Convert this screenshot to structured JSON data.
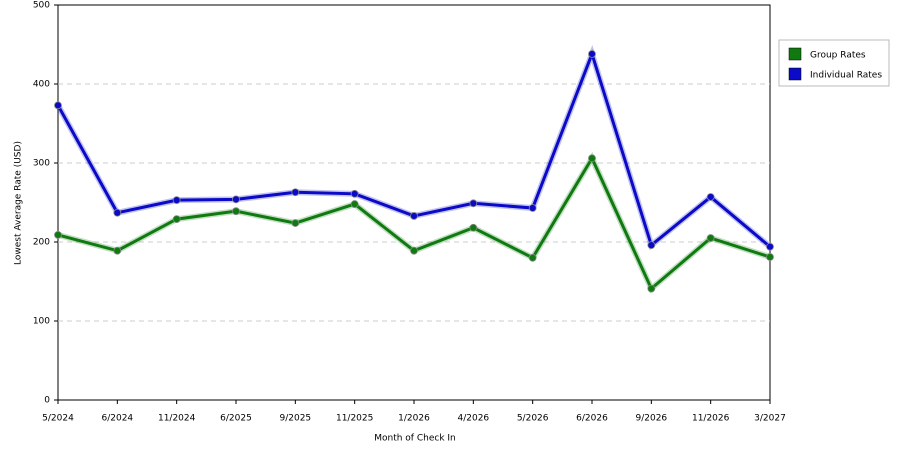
{
  "chart_data": {
    "type": "line",
    "x_label": "Month of Check In",
    "y_label": "Lowest Average Rate (USD)",
    "categories": [
      "5/2024",
      "6/2024",
      "11/2024",
      "6/2025",
      "9/2025",
      "11/2025",
      "1/2026",
      "4/2026",
      "5/2026",
      "6/2026",
      "9/2026",
      "11/2026",
      "3/2027"
    ],
    "series": [
      {
        "name": "Group Rates",
        "color": "#0f7a0f",
        "values": [
          209,
          189,
          229,
          239,
          224,
          248,
          189,
          218,
          180,
          306,
          141,
          205,
          181
        ]
      },
      {
        "name": "Individual Rates",
        "color": "#0a0ac8",
        "values": [
          373,
          237,
          253,
          254,
          263,
          261,
          233,
          249,
          243,
          438,
          196,
          257,
          194
        ]
      }
    ],
    "ylim": [
      0,
      500
    ],
    "yticks": [
      0,
      100,
      200,
      300,
      400,
      500
    ],
    "grid": true,
    "legend": "right"
  }
}
